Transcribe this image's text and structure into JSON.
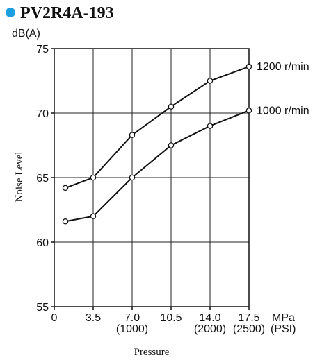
{
  "chart_data": {
    "type": "line",
    "title": "PV2R4A-193",
    "title_bullet_color": "#1a9fe0",
    "ylabel": "Noise Level",
    "yunit": "dB(A)",
    "xlabel": "Pressure",
    "xunit_primary": "MPa",
    "xunit_secondary": "(PSI)",
    "xlim": [
      0,
      17.5
    ],
    "ylim": [
      55,
      75
    ],
    "grid": true,
    "x_ticks": [
      {
        "value": 0,
        "label": "0",
        "psi": ""
      },
      {
        "value": 3.5,
        "label": "3.5",
        "psi": ""
      },
      {
        "value": 7.0,
        "label": "7.0",
        "psi": "(1000)"
      },
      {
        "value": 10.5,
        "label": "10.5",
        "psi": ""
      },
      {
        "value": 14.0,
        "label": "14.0",
        "psi": "(2000)"
      },
      {
        "value": 17.5,
        "label": "17.5",
        "psi": "(2500)"
      }
    ],
    "y_ticks": [
      {
        "value": 55,
        "label": "55"
      },
      {
        "value": 60,
        "label": "60"
      },
      {
        "value": 65,
        "label": "65"
      },
      {
        "value": 70,
        "label": "70"
      },
      {
        "value": 75,
        "label": "75"
      }
    ],
    "series": [
      {
        "name": "1200 r/min",
        "x": [
          1.0,
          3.5,
          7.0,
          10.5,
          14.0,
          17.5
        ],
        "y": [
          64.2,
          65.0,
          68.3,
          70.5,
          72.5,
          73.6
        ]
      },
      {
        "name": "1000 r/min",
        "x": [
          1.0,
          3.5,
          7.0,
          10.5,
          14.0,
          17.5
        ],
        "y": [
          61.6,
          62.0,
          65.0,
          67.5,
          69.0,
          70.2
        ]
      }
    ]
  }
}
